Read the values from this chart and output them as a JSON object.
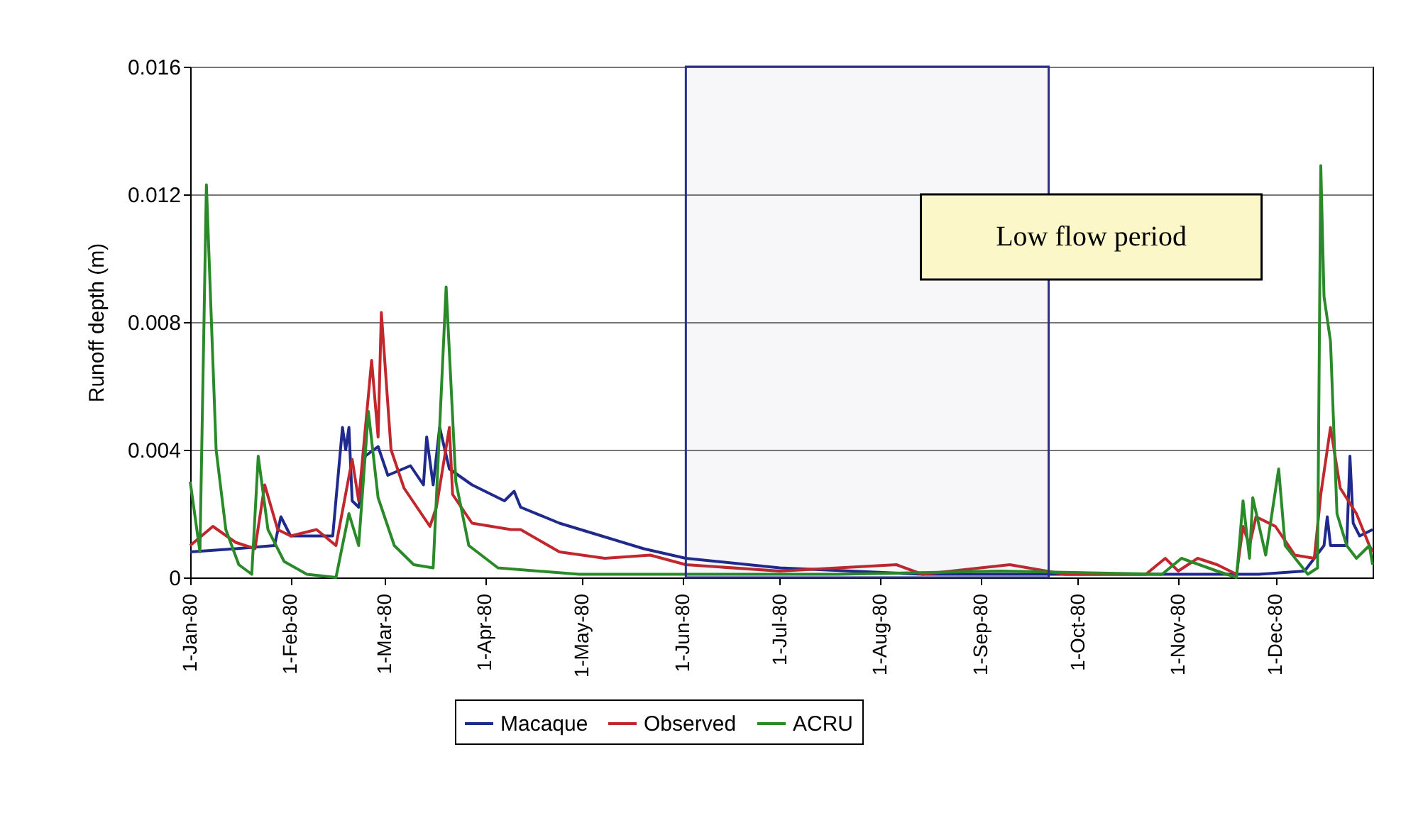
{
  "chart_data": {
    "type": "line",
    "ylabel": "Runoff depth (m)",
    "xlim": [
      "1980-01-01",
      "1980-12-31"
    ],
    "xticks": [
      {
        "value": "1980-01-01",
        "label": "1-Jan-80"
      },
      {
        "value": "1980-02-01",
        "label": "1-Feb-80"
      },
      {
        "value": "1980-03-01",
        "label": "1-Mar-80"
      },
      {
        "value": "1980-04-01",
        "label": "1-Apr-80"
      },
      {
        "value": "1980-05-01",
        "label": "1-May-80"
      },
      {
        "value": "1980-06-01",
        "label": "1-Jun-80"
      },
      {
        "value": "1980-07-01",
        "label": "1-Jul-80"
      },
      {
        "value": "1980-08-01",
        "label": "1-Aug-80"
      },
      {
        "value": "1980-09-01",
        "label": "1-Sep-80"
      },
      {
        "value": "1980-10-01",
        "label": "1-Oct-80"
      },
      {
        "value": "1980-11-01",
        "label": "1-Nov-80"
      },
      {
        "value": "1980-12-01",
        "label": "1-Dec-80"
      }
    ],
    "ylim": [
      0,
      0.016
    ],
    "yticks": [
      0,
      0.004,
      0.008,
      0.012,
      0.016
    ],
    "grid": "y",
    "legend": "bottom",
    "line_style": "solid",
    "bands": [
      {
        "axis": "x",
        "from": "1980-06-02",
        "to": "1980-09-22",
        "label": "Low flow period",
        "color": "#2b2f8a"
      }
    ],
    "series": [
      {
        "name": "Macaque",
        "color": "#1f2a8c",
        "x": [
          "1980-01-01",
          "1980-01-15",
          "1980-01-27",
          "1980-01-29",
          "1980-02-01",
          "1980-02-14",
          "1980-02-17",
          "1980-02-18",
          "1980-02-19",
          "1980-02-20",
          "1980-02-22",
          "1980-02-24",
          "1980-02-28",
          "1980-03-02",
          "1980-03-09",
          "1980-03-13",
          "1980-03-14",
          "1980-03-16",
          "1980-03-18",
          "1980-03-21",
          "1980-03-28",
          "1980-04-07",
          "1980-04-10",
          "1980-04-12",
          "1980-04-24",
          "1980-05-07",
          "1980-05-20",
          "1980-06-02",
          "1980-07-01",
          "1980-08-14",
          "1980-10-27",
          "1980-11-26",
          "1980-12-10",
          "1980-12-16",
          "1980-12-17",
          "1980-12-18",
          "1980-12-23",
          "1980-12-24",
          "1980-12-25",
          "1980-12-27",
          "1980-12-31"
        ],
        "values": [
          0.0008,
          0.0009,
          0.001,
          0.0019,
          0.0013,
          0.0013,
          0.0047,
          0.004,
          0.0047,
          0.0024,
          0.0022,
          0.0038,
          0.0041,
          0.0032,
          0.0035,
          0.0029,
          0.0044,
          0.0029,
          0.0047,
          0.0034,
          0.0029,
          0.0024,
          0.0027,
          0.0022,
          0.0017,
          0.0013,
          0.0009,
          0.0006,
          0.0003,
          0.0001,
          0.0001,
          0.0001,
          0.0002,
          0.001,
          0.0019,
          0.001,
          0.001,
          0.0038,
          0.0017,
          0.0013,
          0.0015
        ]
      },
      {
        "name": "Observed",
        "color": "#c0282d",
        "x": [
          "1980-01-01",
          "1980-01-08",
          "1980-01-15",
          "1980-01-21",
          "1980-01-24",
          "1980-01-28",
          "1980-02-01",
          "1980-02-09",
          "1980-02-15",
          "1980-02-20",
          "1980-02-22",
          "1980-02-26",
          "1980-02-28",
          "1980-02-29",
          "1980-03-03",
          "1980-03-07",
          "1980-03-15",
          "1980-03-17",
          "1980-03-21",
          "1980-03-22",
          "1980-03-28",
          "1980-04-09",
          "1980-04-12",
          "1980-04-24",
          "1980-05-08",
          "1980-05-22",
          "1980-06-02",
          "1980-07-01",
          "1980-08-06",
          "1980-08-14",
          "1980-09-10",
          "1980-09-27",
          "1980-10-22",
          "1980-10-28",
          "1980-11-01",
          "1980-11-07",
          "1980-11-13",
          "1980-11-19",
          "1980-11-21",
          "1980-11-23",
          "1980-11-25",
          "1980-12-01",
          "1980-12-07",
          "1980-12-13",
          "1980-12-15",
          "1980-12-18",
          "1980-12-21",
          "1980-12-26",
          "1980-12-30",
          "1980-12-31"
        ],
        "values": [
          0.001,
          0.0016,
          0.0011,
          0.0009,
          0.0029,
          0.0015,
          0.0013,
          0.0015,
          0.001,
          0.0037,
          0.0024,
          0.0068,
          0.0044,
          0.0083,
          0.004,
          0.0028,
          0.0016,
          0.0022,
          0.0047,
          0.0026,
          0.0017,
          0.0015,
          0.0015,
          0.0008,
          0.0006,
          0.0007,
          0.0004,
          0.0002,
          0.0004,
          0.0001,
          0.0004,
          0.0001,
          0.0001,
          0.0006,
          0.0002,
          0.0006,
          0.0004,
          0.0001,
          0.0016,
          0.001,
          0.0019,
          0.0016,
          0.0007,
          0.0006,
          0.0026,
          0.0047,
          0.0028,
          0.002,
          0.001,
          0.0008
        ]
      },
      {
        "name": "ACRU",
        "color": "#2a8a2a",
        "x": [
          "1980-01-01",
          "1980-01-04",
          "1980-01-06",
          "1980-01-09",
          "1980-01-12",
          "1980-01-16",
          "1980-01-20",
          "1980-01-22",
          "1980-01-25",
          "1980-01-30",
          "1980-02-06",
          "1980-02-15",
          "1980-02-19",
          "1980-02-22",
          "1980-02-25",
          "1980-02-28",
          "1980-03-04",
          "1980-03-10",
          "1980-03-16",
          "1980-03-20",
          "1980-03-23",
          "1980-03-27",
          "1980-04-05",
          "1980-04-30",
          "1980-07-19",
          "1980-09-07",
          "1980-10-27",
          "1980-11-02",
          "1980-11-13",
          "1980-11-19",
          "1980-11-21",
          "1980-11-23",
          "1980-11-24",
          "1980-11-28",
          "1980-12-02",
          "1980-12-04",
          "1980-12-11",
          "1980-12-14",
          "1980-12-15",
          "1980-12-16",
          "1980-12-18",
          "1980-12-20",
          "1980-12-23",
          "1980-12-26",
          "1980-12-30",
          "1980-12-31"
        ],
        "values": [
          0.003,
          0.0008,
          0.0123,
          0.004,
          0.0015,
          0.0004,
          0.0001,
          0.0038,
          0.0015,
          0.0005,
          0.0001,
          0,
          0.002,
          0.001,
          0.0052,
          0.0025,
          0.001,
          0.0004,
          0.0003,
          0.0091,
          0.003,
          0.001,
          0.0003,
          0.0001,
          0.0001,
          0.0002,
          0.0001,
          0.0006,
          0.0002,
          0,
          0.0024,
          0.0006,
          0.0025,
          0.0007,
          0.0034,
          0.001,
          0.0001,
          0.0003,
          0.0129,
          0.0088,
          0.0074,
          0.002,
          0.001,
          0.0006,
          0.001,
          0.0004
        ]
      }
    ]
  }
}
